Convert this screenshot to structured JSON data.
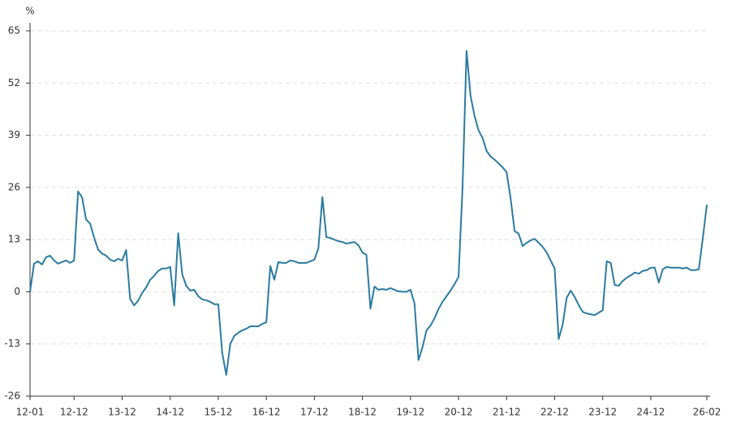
{
  "chart_data": {
    "type": "line",
    "y_label": "%",
    "categories": [
      "12-01",
      null,
      null,
      null,
      null,
      null,
      null,
      null,
      null,
      null,
      null,
      "12-12",
      null,
      null,
      null,
      null,
      null,
      null,
      null,
      null,
      null,
      null,
      null,
      "13-12",
      null,
      null,
      null,
      null,
      null,
      null,
      null,
      null,
      null,
      null,
      null,
      "14-12",
      null,
      null,
      null,
      null,
      null,
      null,
      null,
      null,
      null,
      null,
      null,
      "15-12",
      null,
      null,
      null,
      null,
      null,
      null,
      null,
      null,
      null,
      null,
      null,
      "16-12",
      null,
      null,
      null,
      null,
      null,
      null,
      null,
      null,
      null,
      null,
      null,
      "17-12",
      null,
      null,
      null,
      null,
      null,
      null,
      null,
      null,
      null,
      null,
      null,
      "18-12",
      null,
      null,
      null,
      null,
      null,
      null,
      null,
      null,
      null,
      null,
      null,
      "19-12",
      null,
      null,
      null,
      null,
      null,
      null,
      null,
      null,
      null,
      null,
      null,
      "20-12",
      null,
      null,
      null,
      null,
      null,
      null,
      null,
      null,
      null,
      null,
      null,
      "21-12",
      null,
      null,
      null,
      null,
      null,
      null,
      null,
      null,
      null,
      null,
      null,
      "22-12",
      null,
      null,
      null,
      null,
      null,
      null,
      null,
      null,
      null,
      null,
      null,
      "23-12",
      null,
      null,
      null,
      null,
      null,
      null,
      null,
      null,
      null,
      null,
      null,
      "24-12",
      null,
      null,
      null,
      null,
      null,
      null,
      null,
      null,
      null,
      null,
      null,
      null,
      null,
      "26-02"
    ],
    "values": [
      0,
      7,
      7.6,
      6.8,
      8.6,
      9,
      7.8,
      7,
      7.4,
      7.8,
      7.2,
      7.8,
      25,
      23.5,
      18,
      17,
      13.5,
      10.5,
      9.5,
      9,
      8,
      7.6,
      8.2,
      7.8,
      10.4,
      -1.8,
      -3.4,
      -2.2,
      -0.3,
      1.1,
      3,
      4,
      5.2,
      5.8,
      5.8,
      6.2,
      -3.4,
      14.6,
      4.4,
      1.5,
      0.3,
      0.5,
      -1.1,
      -1.9,
      -2.1,
      -2.5,
      -3.1,
      -3.1,
      -15.3,
      -20.7,
      -13,
      -11,
      -10.2,
      -9.6,
      -9.2,
      -8.6,
      -8.6,
      -8.6,
      -8,
      -7.6,
      6.4,
      3,
      7.4,
      7.2,
      7.2,
      7.8,
      7.6,
      7.2,
      7.2,
      7.2,
      7.6,
      8,
      10.8,
      23.6,
      13.6,
      13.4,
      13,
      12.6,
      12.4,
      12,
      12.2,
      12.4,
      11.6,
      9.8,
      9.2,
      -4.2,
      1.3,
      0.5,
      0.7,
      0.5,
      0.9,
      0.5,
      0.1,
      0,
      0,
      0.5,
      -2.9,
      -17,
      -13.8,
      -9.6,
      -8.4,
      -6.6,
      -4.3,
      -2.5,
      -1.1,
      0.3,
      1.9,
      3.7,
      26,
      60,
      48.8,
      43.8,
      40.2,
      38.3,
      35.1,
      33.7,
      32.9,
      32,
      31,
      29.8,
      23.3,
      15.1,
      14.5,
      11.4,
      12.2,
      12.8,
      13.2,
      12.2,
      11.2,
      9.8,
      7.8,
      5.8,
      -11.8,
      -8.2,
      -1.5,
      0.3,
      -1.3,
      -3.3,
      -5,
      -5.4,
      -5.6,
      -5.8,
      -5.2,
      -4.6,
      7.6,
      7.2,
      1.7,
      1.5,
      2.7,
      3.5,
      4.1,
      4.8,
      4.5,
      5.2,
      5.4,
      6,
      6,
      2.3,
      5.6,
      6.2,
      6,
      6,
      6,
      5.8,
      6,
      5.4,
      5.4,
      5.6,
      13.4,
      21.7
    ],
    "color": "#2b7ba0",
    "ylim": [
      -26,
      65
    ],
    "yticks": [
      65,
      52,
      39,
      26,
      13,
      0,
      -13,
      -26
    ],
    "grid": true
  }
}
